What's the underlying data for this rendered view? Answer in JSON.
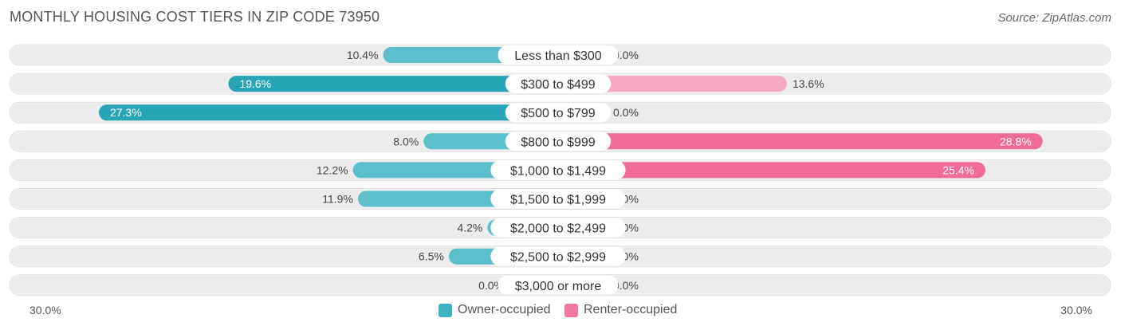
{
  "title": "MONTHLY HOUSING COST TIERS IN ZIP CODE 73950",
  "source": "Source: ZipAtlas.com",
  "colors": {
    "owner": "#5bbfcc",
    "owner_dark": "#28a4b7",
    "renter": "#f7a8c3",
    "renter_dark": "#f06b95",
    "row_bg": "#ececec"
  },
  "axis": {
    "left_label": "30.0%",
    "right_label": "30.0%"
  },
  "legend": [
    {
      "name": "Owner-occupied",
      "color": "#3fb2c1"
    },
    {
      "name": "Renter-occupied",
      "color": "#f2779f"
    }
  ],
  "chart_data": {
    "type": "bar",
    "orientation": "horizontal-diverging",
    "xlim": [
      -30,
      30
    ],
    "categories": [
      "Less than $300",
      "$300 to $499",
      "$500 to $799",
      "$800 to $999",
      "$1,000 to $1,499",
      "$1,500 to $1,999",
      "$2,000 to $2,499",
      "$2,500 to $2,999",
      "$3,000 or more"
    ],
    "series": [
      {
        "name": "Owner-occupied",
        "values": [
          10.4,
          19.6,
          27.3,
          8.0,
          12.2,
          11.9,
          4.2,
          6.5,
          0.0
        ],
        "labels": [
          "10.4%",
          "19.6%",
          "27.3%",
          "8.0%",
          "12.2%",
          "11.9%",
          "4.2%",
          "6.5%",
          "0.0%"
        ]
      },
      {
        "name": "Renter-occupied",
        "values": [
          0.0,
          13.6,
          0.0,
          28.8,
          25.4,
          0.0,
          0.0,
          0.0,
          0.0
        ],
        "labels": [
          "0.0%",
          "13.6%",
          "0.0%",
          "28.8%",
          "25.4%",
          "0.0%",
          "0.0%",
          "0.0%",
          "0.0%"
        ]
      }
    ]
  }
}
